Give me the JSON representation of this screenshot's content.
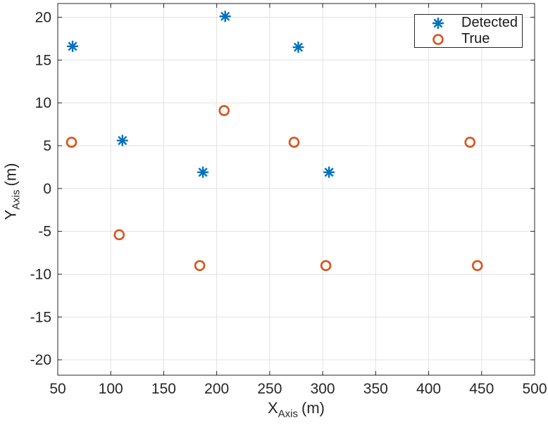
{
  "chart_data": {
    "type": "scatter",
    "title": "",
    "xlabel": {
      "main": "X",
      "sub": "Axis",
      "unit": "(m)"
    },
    "ylabel": {
      "main": "Y",
      "sub": "Axis",
      "unit": "(m)"
    },
    "xlim": [
      50,
      500
    ],
    "ylim": [
      -21.8,
      21.6
    ],
    "xticks": [
      50,
      100,
      150,
      200,
      250,
      300,
      350,
      400,
      450,
      500
    ],
    "yticks": [
      -20,
      -15,
      -10,
      -5,
      0,
      5,
      10,
      15,
      20
    ],
    "grid": true,
    "legend_position": "top-right",
    "series": [
      {
        "name": "Detected",
        "marker": "asterisk",
        "color": "#0072BD",
        "points": [
          [
            64,
            16.6
          ],
          [
            111,
            5.6
          ],
          [
            187,
            1.9
          ],
          [
            208,
            20.1
          ],
          [
            277,
            16.5
          ],
          [
            306,
            1.9
          ]
        ]
      },
      {
        "name": "True",
        "marker": "circle",
        "color": "#D95319",
        "points": [
          [
            63,
            5.4
          ],
          [
            108,
            -5.4
          ],
          [
            184,
            -9.0
          ],
          [
            207,
            9.1
          ],
          [
            273,
            5.4
          ],
          [
            303,
            -9.0
          ],
          [
            439,
            5.4
          ],
          [
            446,
            -9.0
          ]
        ]
      }
    ],
    "colors": {
      "grid": "#e2e2e2",
      "axis": "#262626",
      "background": "#ffffff"
    }
  }
}
